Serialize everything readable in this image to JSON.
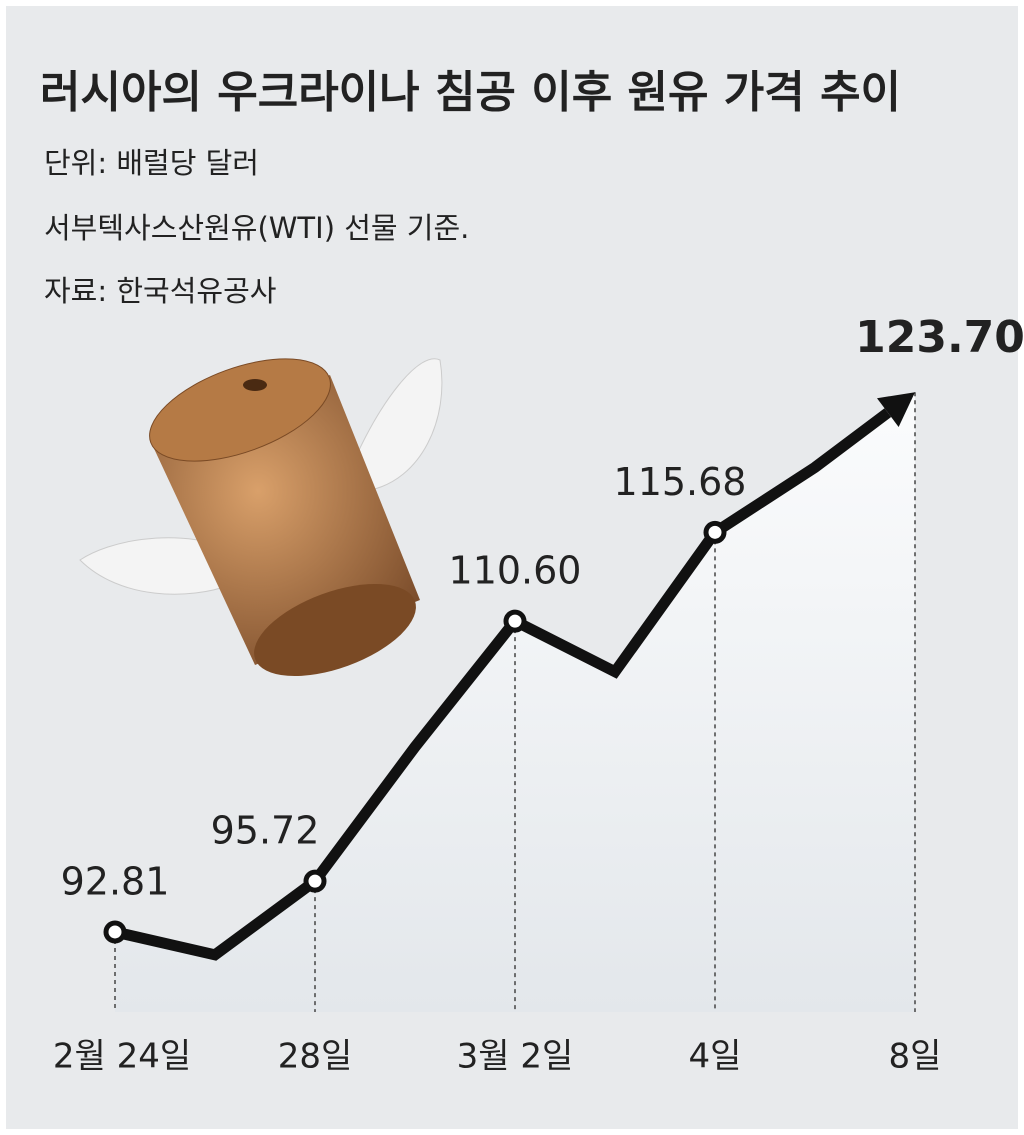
{
  "chart_data": {
    "type": "line",
    "title": "러시아의 우크라이나 침공 이후 원유 가격 추이",
    "subtitle": [
      "단위: 배럴당 달러",
      "서부텍사스산원유(WTI) 선물 기준.",
      "자료: 한국석유공사"
    ],
    "categories": [
      "2월 24일",
      null,
      "28일",
      null,
      "3월 2일",
      null,
      "4일",
      null,
      "8일"
    ],
    "values": [
      92.81,
      91.5,
      95.72,
      103.4,
      110.6,
      107.7,
      115.68,
      119.4,
      123.7
    ],
    "value_labels": [
      "92.81",
      null,
      "95.72",
      null,
      "110.60",
      null,
      "115.68",
      null,
      "123.70"
    ],
    "color": "#111111",
    "ylim": [
      88,
      126
    ]
  }
}
